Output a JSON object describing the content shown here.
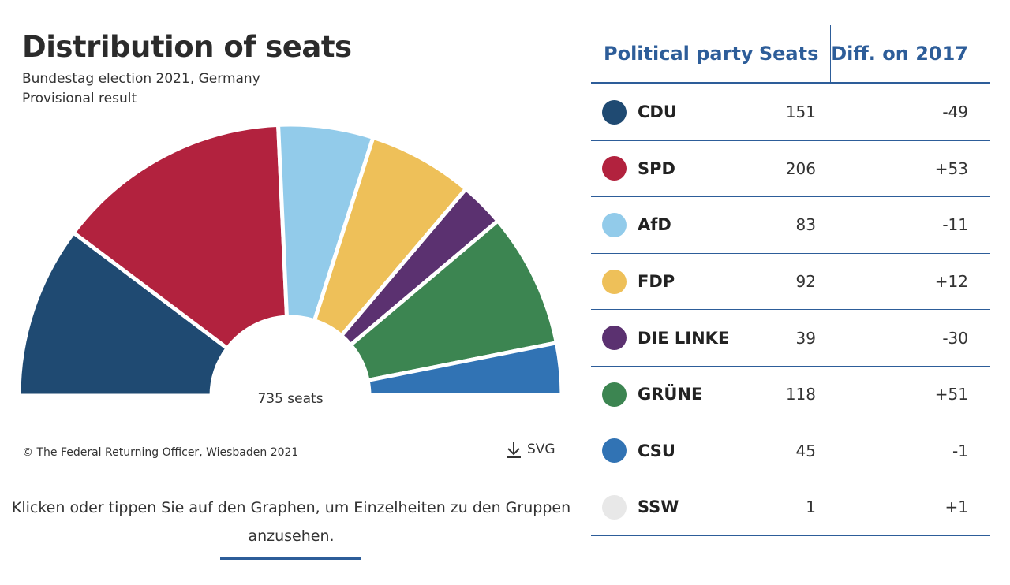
{
  "header": {
    "title": "Distribution of seats",
    "subtitle_line1": "Bundestag election 2021, Germany",
    "subtitle_line2": "Provisional result"
  },
  "chart_data": {
    "type": "pie",
    "variant": "semicircle-donut",
    "total_label": "735 seats",
    "total": 735,
    "categories": [
      "CDU",
      "SPD",
      "AfD",
      "FDP",
      "DIE LINKE",
      "GRÜNE",
      "CSU",
      "SSW"
    ],
    "values": [
      151,
      206,
      83,
      92,
      39,
      118,
      45,
      1
    ],
    "diff_on_2017": [
      "-49",
      "+53",
      "-11",
      "+12",
      "-30",
      "+51",
      "-1",
      "+1"
    ],
    "colors": [
      "#1f4a72",
      "#b2223e",
      "#92cbea",
      "#eec059",
      "#5b3170",
      "#3c8551",
      "#3173b4",
      "#e8e8e8"
    ]
  },
  "footer": {
    "copyright": "© The Federal Returning Officer, Wiesbaden 2021",
    "download_label": "SVG",
    "download_icon": "download-icon",
    "hint": "Klicken oder tippen Sie auf den Graphen, um Einzelheiten zu den Gruppen anzusehen."
  },
  "table": {
    "headers": {
      "party": "Political party",
      "seats": "Seats",
      "diff": "Diff. on 2017"
    },
    "rows": [
      {
        "party": "CDU",
        "seats": "151",
        "diff": "-49",
        "color": "#1f4a72"
      },
      {
        "party": "SPD",
        "seats": "206",
        "diff": "+53",
        "color": "#b2223e"
      },
      {
        "party": "AfD",
        "seats": "83",
        "diff": "-11",
        "color": "#92cbea"
      },
      {
        "party": "FDP",
        "seats": "92",
        "diff": "+12",
        "color": "#eec059"
      },
      {
        "party": "DIE LINKE",
        "seats": "39",
        "diff": "-30",
        "color": "#5b3170"
      },
      {
        "party": "GRÜNE",
        "seats": "118",
        "diff": "+51",
        "color": "#3c8551"
      },
      {
        "party": "CSU",
        "seats": "45",
        "diff": "-1",
        "color": "#3173b4"
      },
      {
        "party": "SSW",
        "seats": "1",
        "diff": "+1",
        "color": "#e8e8e8"
      }
    ]
  }
}
